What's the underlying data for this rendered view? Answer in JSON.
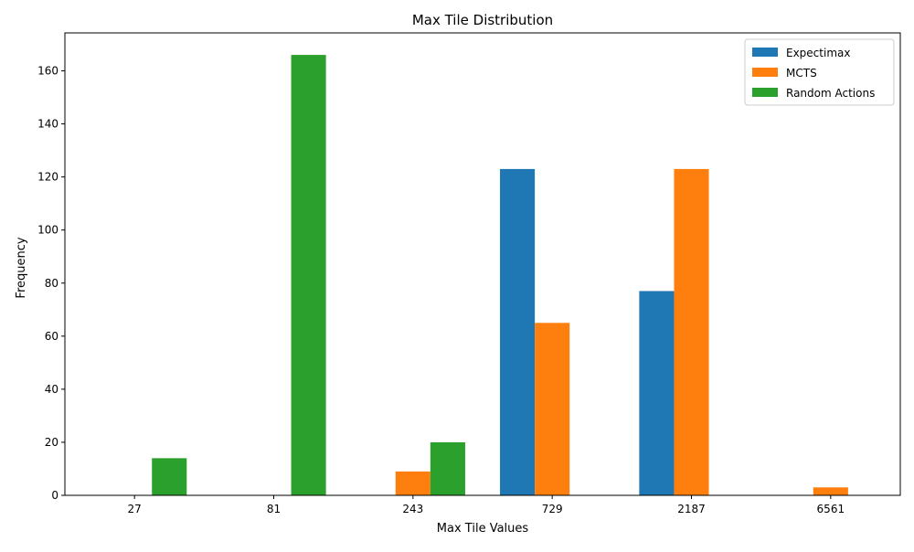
{
  "chart_data": {
    "type": "bar",
    "title": "Max Tile Distribution",
    "xlabel": "Max Tile Values",
    "ylabel": "Frequency",
    "categories": [
      "27",
      "81",
      "243",
      "729",
      "2187",
      "6561"
    ],
    "series": [
      {
        "name": "Expectimax",
        "color": "#1f77b4",
        "values": [
          0,
          0,
          0,
          123,
          77,
          0
        ]
      },
      {
        "name": "MCTS",
        "color": "#ff7f0e",
        "values": [
          0,
          0,
          9,
          65,
          123,
          3
        ]
      },
      {
        "name": "Random Actions",
        "color": "#2ca02c",
        "values": [
          14,
          166,
          20,
          0,
          0,
          0
        ]
      }
    ],
    "ylim": [
      0,
      174.3
    ],
    "yticks": [
      0,
      20,
      40,
      60,
      80,
      100,
      120,
      140,
      160
    ],
    "legend_position": "top-right",
    "grid": false
  }
}
